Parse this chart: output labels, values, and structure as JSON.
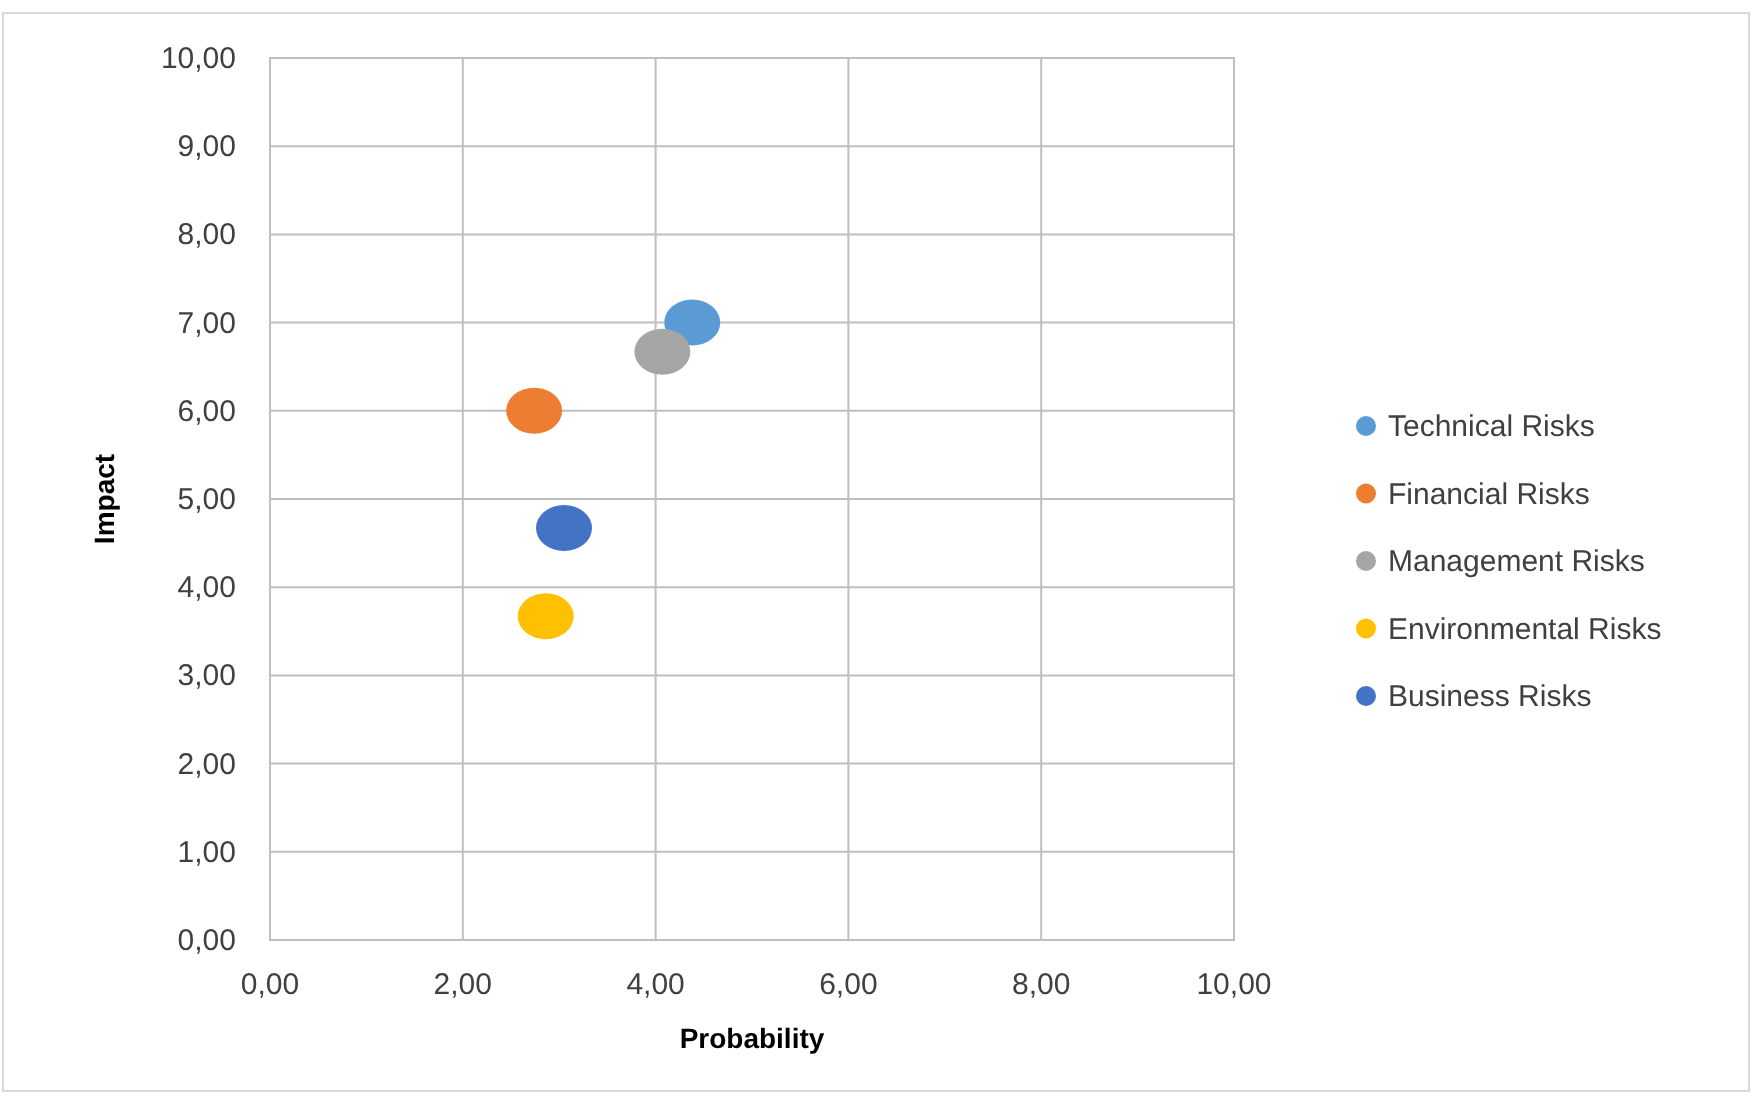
{
  "chart_data": {
    "type": "scatter",
    "xlabel": "Probability",
    "ylabel": "Impact",
    "xlim": [
      0,
      10
    ],
    "ylim": [
      0,
      10
    ],
    "xticks": [
      {
        "value": 0,
        "label": "0,00"
      },
      {
        "value": 2,
        "label": "2,00"
      },
      {
        "value": 4,
        "label": "4,00"
      },
      {
        "value": 6,
        "label": "6,00"
      },
      {
        "value": 8,
        "label": "8,00"
      },
      {
        "value": 10,
        "label": "10,00"
      }
    ],
    "yticks": [
      {
        "value": 0,
        "label": "0,00"
      },
      {
        "value": 1,
        "label": "1,00"
      },
      {
        "value": 2,
        "label": "2,00"
      },
      {
        "value": 3,
        "label": "3,00"
      },
      {
        "value": 4,
        "label": "4,00"
      },
      {
        "value": 5,
        "label": "5,00"
      },
      {
        "value": 6,
        "label": "6,00"
      },
      {
        "value": 7,
        "label": "7,00"
      },
      {
        "value": 8,
        "label": "8,00"
      },
      {
        "value": 9,
        "label": "9,00"
      },
      {
        "value": 10,
        "label": "10,00"
      }
    ],
    "grid": true,
    "legend": "right",
    "marker": "circle",
    "series": [
      {
        "name": "Technical Risks",
        "color": "#5b9bd5",
        "x": [
          4.38
        ],
        "values": [
          7.0
        ]
      },
      {
        "name": "Financial Risks",
        "color": "#ed7d31",
        "x": [
          2.74
        ],
        "values": [
          6.0
        ]
      },
      {
        "name": "Management Risks",
        "color": "#a5a5a5",
        "x": [
          4.07
        ],
        "values": [
          6.67
        ]
      },
      {
        "name": "Environmental Risks",
        "color": "#ffc000",
        "x": [
          2.86
        ],
        "values": [
          3.67
        ]
      },
      {
        "name": "Business Risks",
        "color": "#4472c4",
        "x": [
          3.05
        ],
        "values": [
          4.67
        ]
      }
    ]
  }
}
